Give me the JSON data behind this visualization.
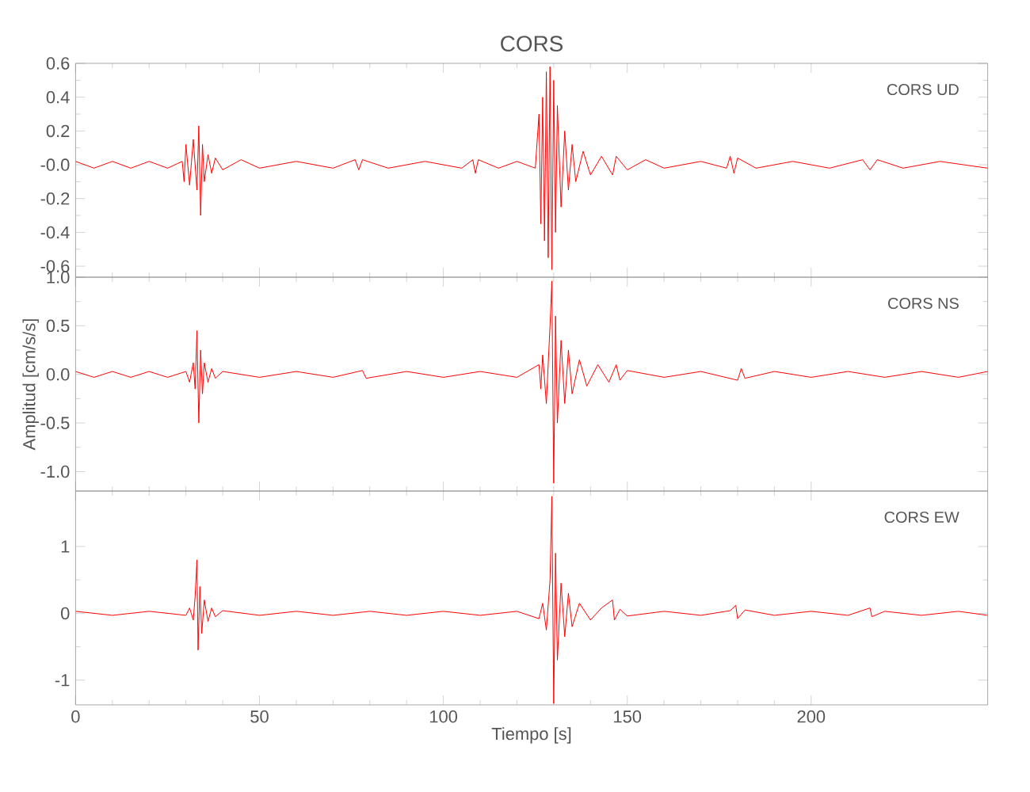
{
  "chart_data": [
    {
      "type": "line",
      "title": "CORS",
      "annotations": [
        "CORS UD"
      ],
      "color": "#ff0000",
      "xlim": [
        0,
        248
      ],
      "xticks": [
        0,
        50,
        100,
        150,
        200
      ],
      "ylim": [
        -0.665,
        0.6
      ],
      "yticks": [
        {
          "value": -0.6,
          "label": "-0.6"
        },
        {
          "value": -0.4,
          "label": "-0.4"
        },
        {
          "value": -0.2,
          "label": "-0.2"
        },
        {
          "value": 0,
          "label": "-0.0"
        },
        0.2,
        0.4,
        0.6
      ],
      "tick_labels": "y",
      "grid": false,
      "x": [
        0,
        5,
        10,
        15,
        20,
        25,
        29,
        29.5,
        30,
        31,
        32,
        33,
        33.5,
        34,
        34.5,
        35,
        36,
        37,
        38,
        40,
        45,
        50,
        60,
        70,
        76,
        77,
        78,
        85,
        95,
        105,
        108,
        108.7,
        109.5,
        115,
        120,
        125,
        126,
        126.5,
        127,
        127.5,
        128,
        128.5,
        129,
        129.5,
        130,
        130.5,
        131,
        132,
        133,
        134,
        135,
        136,
        138,
        140,
        143,
        146,
        147,
        150,
        155,
        160,
        170,
        177,
        178,
        179,
        180,
        185,
        195,
        205,
        214,
        216,
        218,
        225,
        235,
        248
      ],
      "values": [
        0.02,
        -0.02,
        0.02,
        -0.02,
        0.02,
        -0.02,
        0.02,
        -0.1,
        0.12,
        -0.12,
        0.15,
        -0.15,
        0.23,
        -0.3,
        0.12,
        -0.1,
        0.06,
        -0.05,
        0.04,
        -0.03,
        0.03,
        -0.02,
        0.02,
        -0.02,
        0.03,
        -0.03,
        0.03,
        -0.02,
        0.02,
        -0.02,
        0.03,
        -0.05,
        0.03,
        -0.02,
        0.02,
        -0.02,
        0.3,
        -0.35,
        0.4,
        -0.45,
        0.55,
        -0.55,
        0.58,
        -0.62,
        0.5,
        -0.4,
        0.35,
        -0.25,
        0.2,
        -0.15,
        0.12,
        -0.1,
        0.08,
        -0.06,
        0.05,
        -0.06,
        0.05,
        -0.03,
        0.03,
        -0.02,
        0.02,
        -0.02,
        0.05,
        -0.05,
        0.04,
        -0.02,
        0.02,
        -0.02,
        0.03,
        -0.03,
        0.03,
        -0.02,
        0.02,
        -0.02
      ]
    },
    {
      "type": "line",
      "ylabel": "Amplitud [cm/s/s]",
      "annotations": [
        "CORS NS"
      ],
      "color": "#ff0000",
      "xlim": [
        0,
        248
      ],
      "xticks": [
        0,
        50,
        100,
        150,
        200
      ],
      "ylim": [
        -1.2,
        1.0
      ],
      "yticks": [
        {
          "value": -1,
          "label": "-1.0"
        },
        {
          "value": -0.5,
          "label": "-0.5"
        },
        {
          "value": 0,
          "label": "0.0"
        },
        {
          "value": 0.5,
          "label": "0.5"
        },
        {
          "value": 1,
          "label": "1.0"
        }
      ],
      "tick_labels": "y",
      "grid": false,
      "x": [
        0,
        5,
        10,
        15,
        20,
        25,
        30,
        31,
        32,
        32.5,
        33,
        33.5,
        34,
        34.5,
        35,
        36,
        37,
        38,
        40,
        50,
        60,
        70,
        78,
        79,
        90,
        100,
        110,
        120,
        126,
        126.5,
        127,
        128,
        129,
        129.5,
        130,
        130.5,
        131,
        132,
        133,
        134,
        135,
        137,
        139,
        142,
        145,
        147,
        148,
        150,
        160,
        170,
        180,
        181,
        182,
        190,
        200,
        210,
        220,
        230,
        240,
        248
      ],
      "values": [
        0.03,
        -0.03,
        0.03,
        -0.03,
        0.03,
        -0.03,
        0.03,
        -0.08,
        0.12,
        -0.15,
        0.45,
        -0.5,
        0.25,
        -0.2,
        0.12,
        -0.08,
        0.06,
        -0.04,
        0.03,
        -0.03,
        0.03,
        -0.03,
        0.04,
        -0.04,
        0.03,
        -0.03,
        0.03,
        -0.03,
        0.1,
        -0.15,
        0.2,
        -0.3,
        0.5,
        0.96,
        -1.12,
        0.6,
        -0.5,
        0.35,
        -0.3,
        0.25,
        -0.2,
        0.15,
        -0.12,
        0.1,
        -0.08,
        0.1,
        -0.06,
        0.04,
        -0.03,
        0.03,
        -0.06,
        0.06,
        -0.04,
        0.03,
        -0.03,
        0.03,
        -0.03,
        0.03,
        -0.03,
        0.03
      ]
    },
    {
      "type": "line",
      "xlabel": "Tiempo [s]",
      "annotations": [
        "CORS EW"
      ],
      "color": "#ff0000",
      "xlim": [
        0,
        248
      ],
      "xticks": [
        0,
        50,
        100,
        150,
        200
      ],
      "ylim": [
        -1.37,
        1.83
      ],
      "yticks": [
        -1,
        0,
        1
      ],
      "grid": false,
      "x": [
        0,
        10,
        20,
        30,
        31,
        32,
        32.5,
        33,
        33.3,
        33.8,
        34.3,
        35,
        36,
        37,
        38,
        40,
        50,
        60,
        70,
        80,
        90,
        100,
        110,
        120,
        126,
        127,
        128,
        129,
        129.5,
        130,
        130.5,
        131,
        132,
        133,
        134,
        135,
        137,
        140,
        143,
        146,
        146.5,
        148,
        150,
        160,
        170,
        178,
        179.5,
        180,
        182,
        190,
        200,
        210,
        216,
        216.5,
        220,
        230,
        240,
        248
      ],
      "values": [
        0.03,
        -0.03,
        0.03,
        -0.03,
        0.08,
        -0.1,
        0.25,
        0.8,
        -0.55,
        0.4,
        -0.3,
        0.2,
        -0.12,
        0.08,
        -0.05,
        0.04,
        -0.03,
        0.03,
        -0.03,
        0.03,
        -0.03,
        0.03,
        -0.03,
        0.03,
        -0.08,
        0.15,
        -0.25,
        0.5,
        1.75,
        -1.35,
        0.9,
        -0.7,
        0.45,
        -0.35,
        0.3,
        -0.2,
        0.15,
        -0.1,
        0.08,
        0.2,
        -0.1,
        0.06,
        -0.04,
        0.03,
        -0.03,
        0.04,
        0.12,
        -0.08,
        0.05,
        -0.03,
        0.03,
        -0.03,
        0.08,
        -0.05,
        0.03,
        -0.03,
        0.03,
        -0.03
      ]
    }
  ]
}
